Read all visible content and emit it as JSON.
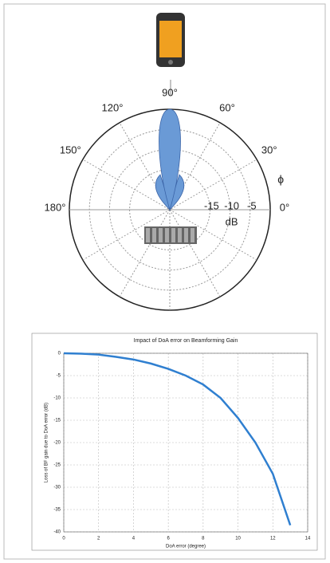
{
  "chart_data": [
    {
      "type": "polar",
      "angle_ticks": [
        {
          "value": 0,
          "label": "0°"
        },
        {
          "value": 30,
          "label": "30°"
        },
        {
          "value": 60,
          "label": "60°"
        },
        {
          "value": 90,
          "label": "90°"
        },
        {
          "value": 120,
          "label": "120°"
        },
        {
          "value": 150,
          "label": "150°"
        },
        {
          "value": 180,
          "label": "180°"
        }
      ],
      "rlim": [
        -25,
        0
      ],
      "rticks": [
        -15,
        -10,
        -5
      ],
      "r_unit_label": "dB",
      "angle_label": "ϕ",
      "color": "#6a9ad6"
    },
    {
      "type": "line",
      "title": "Impact of DoA error on Beamforming Gain",
      "xlabel": "DoA error (degree)",
      "ylabel": "Loss of BF gain due to DoA error (dB)",
      "x": [
        0,
        1,
        2,
        3,
        4,
        5,
        6,
        7,
        8,
        9,
        10,
        11,
        12,
        13
      ],
      "values": [
        0,
        -0.1,
        -0.3,
        -0.8,
        -1.4,
        -2.3,
        -3.5,
        -5.0,
        -7.0,
        -10.0,
        -14.5,
        -20.0,
        -27.0,
        -38.5
      ],
      "color": "#2f7fd0",
      "xlim": [
        0,
        14
      ],
      "xticks": [
        0,
        2,
        4,
        6,
        8,
        10,
        12,
        14
      ],
      "ylim": [
        -40,
        0
      ],
      "yticks": [
        0,
        -5,
        -10,
        -15,
        -20,
        -25,
        -30,
        -35,
        -40
      ],
      "grid": true
    }
  ]
}
